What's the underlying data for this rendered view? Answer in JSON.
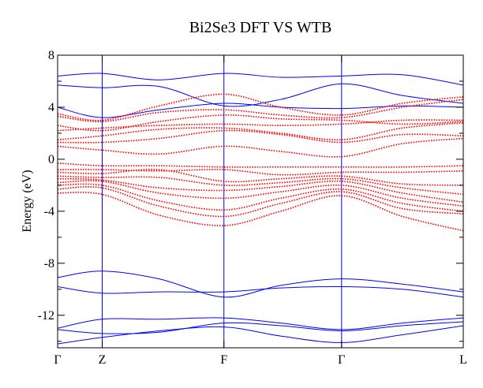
{
  "chart_data": {
    "type": "line",
    "title": "Bi2Se3 DFT VS WTB",
    "xlabel": "",
    "ylabel": "Energy (eV)",
    "ylim": [
      -14.5,
      8
    ],
    "yticks": [
      8,
      4,
      0,
      -4,
      -8,
      -12
    ],
    "x_ticks": [
      {
        "label": "Γ",
        "k": 0.0
      },
      {
        "label": "Z",
        "k": 0.11
      },
      {
        "label": "F",
        "k": 0.41
      },
      {
        "label": "Γ",
        "k": 0.7
      },
      {
        "label": "L",
        "k": 1.0
      }
    ],
    "grid": false,
    "legend": "none",
    "colors": {
      "wtb": "#0000ff",
      "dft": "#ff0000",
      "axes": "#000000",
      "vlines": "#0000ff"
    },
    "series": [
      {
        "group": "wtb",
        "x": [
          0,
          0.11,
          0.25,
          0.41,
          0.55,
          0.7,
          0.85,
          1
        ],
        "y": [
          6.4,
          6.6,
          6.1,
          6.6,
          6.3,
          6.4,
          6.5,
          5.7
        ]
      },
      {
        "group": "wtb",
        "x": [
          0,
          0.11,
          0.25,
          0.41,
          0.55,
          0.7,
          0.85,
          1
        ],
        "y": [
          5.7,
          5.5,
          5.6,
          4.1,
          4.6,
          5.8,
          4.9,
          4.3
        ]
      },
      {
        "group": "wtb",
        "x": [
          0,
          0.11,
          0.25,
          0.41,
          0.55,
          0.7,
          0.85,
          1
        ],
        "y": [
          4.0,
          3.2,
          3.8,
          4.3,
          4.0,
          3.9,
          4.1,
          4.0
        ]
      },
      {
        "group": "wtb",
        "x": [
          0,
          0.11,
          0.25,
          0.41,
          0.55,
          0.7,
          0.85,
          1
        ],
        "y": [
          -9.1,
          -8.6,
          -9.2,
          -10.6,
          -9.7,
          -9.2,
          -9.6,
          -10.2
        ]
      },
      {
        "group": "wtb",
        "x": [
          0,
          0.11,
          0.25,
          0.41,
          0.55,
          0.7,
          0.85,
          1
        ],
        "y": [
          -9.8,
          -10.3,
          -10.2,
          -10.2,
          -9.9,
          -9.8,
          -10.0,
          -10.6
        ]
      },
      {
        "group": "wtb",
        "x": [
          0,
          0.11,
          0.25,
          0.41,
          0.55,
          0.7,
          0.85,
          1
        ],
        "y": [
          -13.0,
          -12.3,
          -12.3,
          -12.2,
          -12.6,
          -13.1,
          -12.6,
          -12.2
        ]
      },
      {
        "group": "wtb",
        "x": [
          0,
          0.11,
          0.25,
          0.41,
          0.55,
          0.7,
          0.85,
          1
        ],
        "y": [
          -13.1,
          -13.4,
          -13.3,
          -12.6,
          -12.8,
          -13.2,
          -12.8,
          -12.5
        ]
      },
      {
        "group": "wtb",
        "x": [
          0,
          0.11,
          0.25,
          0.41,
          0.55,
          0.7,
          0.85,
          1
        ],
        "y": [
          -14.2,
          -13.7,
          -13.2,
          -12.9,
          -13.6,
          -14.1,
          -13.5,
          -12.8
        ]
      },
      {
        "group": "dft",
        "x": [
          0,
          0.11,
          0.25,
          0.41,
          0.55,
          0.7,
          0.85,
          1
        ],
        "y": [
          3.5,
          3.0,
          4.1,
          5.0,
          4.0,
          3.4,
          4.3,
          4.8
        ]
      },
      {
        "group": "dft",
        "x": [
          0,
          0.11,
          0.25,
          0.41,
          0.55,
          0.7,
          0.85,
          1
        ],
        "y": [
          3.3,
          2.9,
          3.6,
          3.8,
          3.4,
          3.2,
          4.0,
          4.6
        ]
      },
      {
        "group": "dft",
        "x": [
          0,
          0.11,
          0.25,
          0.41,
          0.55,
          0.7,
          0.85,
          1
        ],
        "y": [
          2.6,
          2.2,
          2.9,
          3.4,
          3.1,
          3.0,
          2.7,
          2.9
        ]
      },
      {
        "group": "dft",
        "x": [
          0,
          0.11,
          0.25,
          0.41,
          0.55,
          0.7,
          0.85,
          1
        ],
        "y": [
          2.2,
          2.4,
          2.6,
          2.7,
          2.6,
          2.7,
          3.0,
          3.0
        ]
      },
      {
        "group": "dft",
        "x": [
          0,
          0.11,
          0.25,
          0.41,
          0.55,
          0.7,
          0.85,
          1
        ],
        "y": [
          1.5,
          1.8,
          2.3,
          2.4,
          2.0,
          1.5,
          2.4,
          2.8
        ]
      },
      {
        "group": "dft",
        "x": [
          0,
          0.11,
          0.25,
          0.41,
          0.55,
          0.7,
          0.85,
          1
        ],
        "y": [
          1.3,
          1.3,
          1.6,
          2.2,
          1.9,
          1.3,
          1.9,
          1.8
        ]
      },
      {
        "group": "dft",
        "x": [
          0,
          0.11,
          0.25,
          0.41,
          0.55,
          0.7,
          0.85,
          1
        ],
        "y": [
          1.0,
          0.7,
          0.4,
          1.0,
          0.6,
          0.2,
          1.2,
          1.6
        ]
      },
      {
        "group": "dft",
        "x": [
          0,
          0.11,
          0.25,
          0.41,
          0.55,
          0.7,
          0.85,
          1
        ],
        "y": [
          -0.3,
          -0.5,
          -0.5,
          -0.6,
          -0.6,
          -0.6,
          -0.6,
          -0.5
        ]
      },
      {
        "group": "dft",
        "x": [
          0,
          0.11,
          0.25,
          0.41,
          0.55,
          0.7,
          0.85,
          1
        ],
        "y": [
          -0.8,
          -0.8,
          -0.9,
          -0.8,
          -1.2,
          -1.0,
          -1.0,
          -0.9
        ]
      },
      {
        "group": "dft",
        "x": [
          0,
          0.11,
          0.25,
          0.41,
          0.55,
          0.7,
          0.85,
          1
        ],
        "y": [
          -1.0,
          -1.1,
          -0.8,
          -1.7,
          -1.5,
          -1.3,
          -1.9,
          -2.0
        ]
      },
      {
        "group": "dft",
        "x": [
          0,
          0.11,
          0.25,
          0.41,
          0.55,
          0.7,
          0.85,
          1
        ],
        "y": [
          -1.3,
          -1.4,
          -1.4,
          -2.0,
          -1.8,
          -1.5,
          -2.2,
          -2.7
        ]
      },
      {
        "group": "dft",
        "x": [
          0,
          0.11,
          0.25,
          0.41,
          0.55,
          0.7,
          0.85,
          1
        ],
        "y": [
          -1.5,
          -1.6,
          -2.2,
          -2.4,
          -2.1,
          -1.7,
          -2.6,
          -3.3
        ]
      },
      {
        "group": "dft",
        "x": [
          0,
          0.11,
          0.25,
          0.41,
          0.55,
          0.7,
          0.85,
          1
        ],
        "y": [
          -1.8,
          -1.7,
          -2.6,
          -3.0,
          -2.5,
          -2.0,
          -3.0,
          -3.6
        ]
      },
      {
        "group": "dft",
        "x": [
          0,
          0.11,
          0.25,
          0.41,
          0.55,
          0.7,
          0.85,
          1
        ],
        "y": [
          -2.0,
          -2.0,
          -3.2,
          -3.9,
          -3.0,
          -2.3,
          -3.4,
          -4.0
        ]
      },
      {
        "group": "dft",
        "x": [
          0,
          0.11,
          0.25,
          0.41,
          0.55,
          0.7,
          0.85,
          1
        ],
        "y": [
          -2.3,
          -2.2,
          -3.6,
          -4.4,
          -3.4,
          -2.5,
          -3.8,
          -4.2
        ]
      },
      {
        "group": "dft",
        "x": [
          0,
          0.11,
          0.25,
          0.41,
          0.55,
          0.7,
          0.85,
          1
        ],
        "y": [
          -2.6,
          -2.7,
          -4.3,
          -5.1,
          -4.0,
          -2.8,
          -4.4,
          -5.5
        ]
      }
    ]
  }
}
